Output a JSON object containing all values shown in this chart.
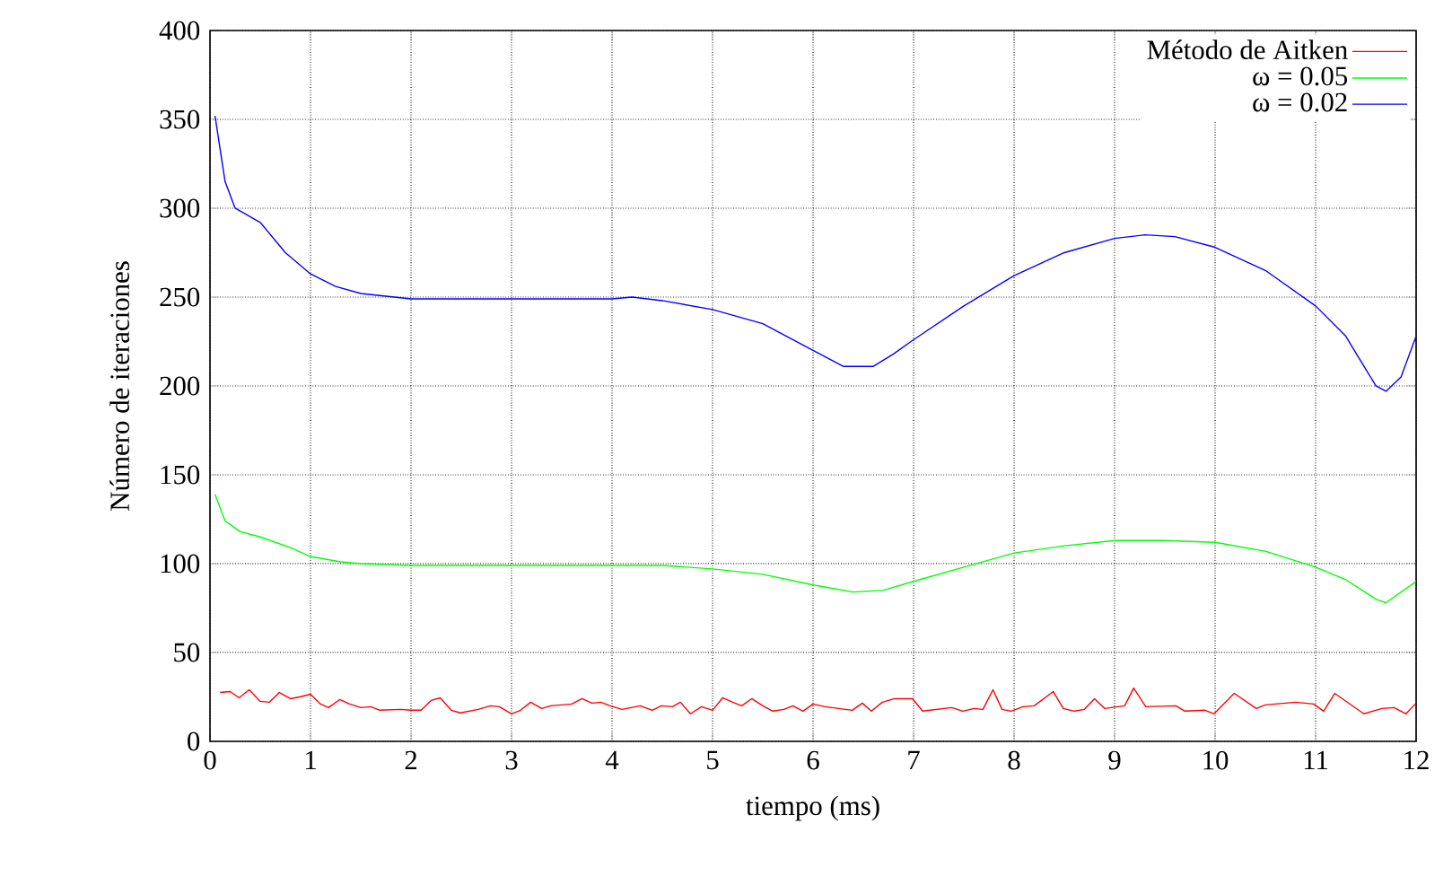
{
  "chart_data": {
    "type": "line",
    "xlabel": "tiempo (ms)",
    "ylabel": "Número de iteraciones",
    "xlim": [
      0,
      12
    ],
    "ylim": [
      0,
      400
    ],
    "xticks": [
      0,
      1,
      2,
      3,
      4,
      5,
      6,
      7,
      8,
      9,
      10,
      11,
      12
    ],
    "yticks": [
      0,
      50,
      100,
      150,
      200,
      250,
      300,
      350,
      400
    ],
    "grid": true,
    "legend": "top right",
    "line_style": "solid",
    "marker": "none",
    "series": [
      {
        "name": "Método de Aitken",
        "color": "#ff0000",
        "x": [
          0.1,
          0.2,
          0.29,
          0.39,
          0.5,
          0.59,
          0.69,
          0.8,
          0.89,
          1.0,
          1.1,
          1.18,
          1.29,
          1.39,
          1.5,
          1.6,
          1.69,
          1.9,
          1.99,
          2.1,
          2.2,
          2.29,
          2.4,
          2.49,
          2.67,
          2.79,
          2.88,
          3.0,
          3.09,
          3.19,
          3.3,
          3.39,
          3.6,
          3.7,
          3.8,
          3.89,
          3.98,
          4.1,
          4.28,
          4.4,
          4.49,
          4.6,
          4.68,
          4.78,
          4.89,
          5.0,
          5.1,
          5.2,
          5.29,
          5.39,
          5.5,
          5.6,
          5.71,
          5.8,
          5.9,
          6.0,
          6.12,
          6.39,
          6.49,
          6.58,
          6.69,
          6.81,
          6.99,
          7.09,
          7.38,
          7.49,
          7.6,
          7.69,
          7.79,
          7.88,
          7.97,
          8.09,
          8.2,
          8.39,
          8.49,
          8.6,
          8.7,
          8.8,
          8.9,
          9.1,
          9.19,
          9.31,
          9.61,
          9.7,
          9.9,
          9.99,
          10.19,
          10.41,
          10.5,
          10.8,
          10.98,
          11.08,
          11.19,
          11.48,
          11.66,
          11.78,
          11.9,
          11.99
        ],
        "values": [
          27.5,
          28,
          24.5,
          29,
          22.5,
          22,
          27.5,
          24,
          25,
          26.5,
          21,
          19,
          23.5,
          21,
          19,
          19.5,
          17.5,
          18,
          17.5,
          17.5,
          23,
          24.5,
          17.5,
          16,
          18,
          20,
          19.5,
          15.5,
          17.5,
          22,
          18.5,
          20,
          21,
          24,
          21.5,
          22,
          20,
          18,
          20,
          17.5,
          20,
          19.5,
          22,
          15.5,
          19.5,
          17.5,
          24.5,
          22,
          20,
          24,
          20,
          17,
          18,
          20,
          17,
          21,
          19.5,
          17.5,
          21.5,
          17,
          22,
          24,
          24,
          17,
          19,
          17,
          18.5,
          18,
          29,
          18,
          17,
          19.5,
          20,
          28,
          18.5,
          17,
          18,
          24,
          18.5,
          20,
          30,
          19.5,
          20,
          17,
          17.5,
          15.5,
          27,
          18.5,
          20.5,
          22,
          21,
          17,
          27,
          15.5,
          18.5,
          19,
          15.5,
          21
        ]
      },
      {
        "name": "ω = 0.05",
        "color": "#00ff00",
        "x": [
          0.05,
          0.15,
          0.3,
          0.5,
          0.8,
          1,
          1.3,
          1.5,
          2,
          3,
          4,
          4.5,
          5,
          5.5,
          6,
          6.4,
          6.7,
          7,
          7.5,
          8,
          8.5,
          9,
          9.5,
          10,
          10.5,
          11,
          11.3,
          11.6,
          11.7,
          12
        ],
        "values": [
          139,
          124,
          118,
          115,
          109,
          104,
          101,
          100,
          99,
          99,
          99,
          99,
          97,
          94,
          88,
          84,
          85,
          90,
          98,
          106,
          110,
          113,
          113,
          112,
          107,
          98,
          91,
          80,
          78,
          90
        ]
      },
      {
        "name": "ω = 0.02",
        "color": "#0000ff",
        "x": [
          0.05,
          0.15,
          0.25,
          0.5,
          0.75,
          1.0,
          1.25,
          1.5,
          2,
          2.5,
          3,
          3.5,
          4,
          4.2,
          4.5,
          5,
          5.5,
          6,
          6.3,
          6.6,
          6.8,
          7,
          7.5,
          8,
          8.5,
          9,
          9.3,
          9.6,
          10,
          10.5,
          11,
          11.3,
          11.6,
          11.7,
          11.85,
          12
        ],
        "values": [
          352,
          315,
          300,
          292,
          275,
          263,
          256,
          252,
          249,
          249,
          249,
          249,
          249,
          250,
          248,
          243,
          235,
          220,
          211,
          211,
          218,
          226,
          245,
          262,
          275,
          283,
          285,
          284,
          278,
          265,
          245,
          228,
          200,
          197,
          205,
          228
        ]
      }
    ]
  }
}
